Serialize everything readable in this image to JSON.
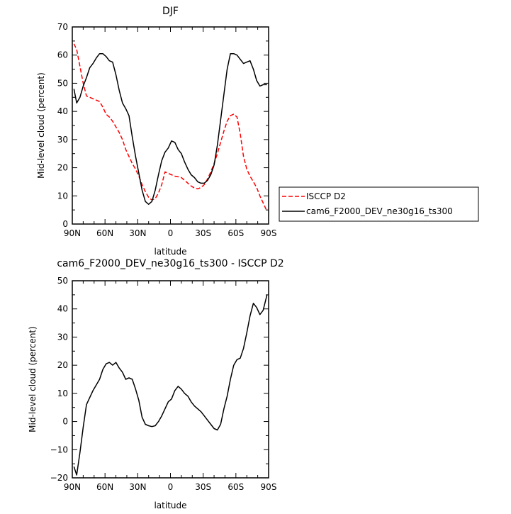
{
  "chart_data": [
    {
      "type": "line",
      "title": "DJF",
      "xlabel": "latitude",
      "ylabel": "Mid-level cloud (percent)",
      "xlim": [
        90,
        -90
      ],
      "ylim": [
        0,
        70
      ],
      "x_ticks": [
        90,
        60,
        30,
        0,
        -30,
        -60,
        -90
      ],
      "x_tick_labels": [
        "90N",
        "60N",
        "30N",
        "0",
        "30S",
        "60S",
        "90S"
      ],
      "y_ticks": [
        0,
        10,
        20,
        30,
        40,
        50,
        60,
        70
      ],
      "y_tick_labels": [
        "0",
        "10",
        "20",
        "30",
        "40",
        "50",
        "60",
        "70"
      ],
      "grid": false,
      "legend": "right",
      "series": [
        {
          "name": "ISCCP D2",
          "color": "#ff0000",
          "style": "dashed",
          "x": [
            88.5,
            86,
            83,
            80,
            77,
            74,
            71,
            68,
            65,
            62,
            59,
            56,
            53,
            50,
            47,
            44,
            41,
            38,
            35,
            32,
            29,
            26,
            23,
            20,
            17,
            14,
            11,
            8,
            5,
            2,
            -1,
            -4,
            -7,
            -10,
            -13,
            -16,
            -19,
            -22,
            -25,
            -28,
            -31,
            -34,
            -37,
            -40,
            -43,
            -46,
            -49,
            -52,
            -55,
            -58,
            -61,
            -64,
            -67,
            -70,
            -73,
            -76,
            -79,
            -82,
            -85,
            -88.5
          ],
          "y": [
            64,
            62,
            56,
            50,
            45.5,
            45,
            44.5,
            44,
            43.5,
            41.5,
            39,
            38,
            36.5,
            34.5,
            32.5,
            30,
            26.5,
            24,
            21.5,
            19.5,
            17,
            14,
            11.5,
            9.5,
            8.5,
            9,
            11,
            14,
            18.5,
            18,
            17.5,
            17,
            16.8,
            16.5,
            15.5,
            14.5,
            13.5,
            12.8,
            12.5,
            13,
            14,
            16,
            18.5,
            21.5,
            25,
            29,
            33,
            36.5,
            38.5,
            39,
            38,
            32,
            24,
            19.5,
            17,
            15,
            13,
            10,
            7.5,
            4.5
          ]
        },
        {
          "name": "cam6_F2000_DEV_ne30g16_ts300",
          "color": "#000000",
          "style": "solid",
          "x": [
            88.5,
            86,
            83,
            80,
            77,
            74,
            71,
            68,
            65,
            62,
            59,
            56,
            53,
            50,
            47,
            44,
            41,
            38,
            35,
            32,
            29,
            26,
            23,
            20,
            17,
            14,
            11,
            8,
            5,
            2,
            -1,
            -4,
            -7,
            -10,
            -13,
            -16,
            -19,
            -22,
            -25,
            -28,
            -31,
            -34,
            -37,
            -40,
            -43,
            -46,
            -49,
            -52,
            -55,
            -58,
            -61,
            -64,
            -67,
            -70,
            -73,
            -76,
            -79,
            -82,
            -85,
            -88.5
          ],
          "y": [
            48,
            43,
            45,
            49,
            52,
            55.5,
            57,
            59,
            60.5,
            60.5,
            59.5,
            58,
            57.5,
            53,
            47.5,
            43,
            41,
            38.5,
            31,
            24,
            18,
            12,
            8,
            7,
            8,
            12,
            17.5,
            22.5,
            25.5,
            27,
            29.5,
            29,
            26.5,
            25,
            22,
            19.5,
            17.5,
            16.5,
            15,
            14.5,
            14.5,
            15.5,
            17.5,
            21,
            28,
            37,
            46,
            55,
            60.5,
            60.5,
            60,
            58.5,
            57,
            57.5,
            58,
            55,
            51,
            49,
            49.5,
            49.5
          ]
        }
      ]
    },
    {
      "type": "line",
      "title": "cam6_F2000_DEV_ne30g16_ts300 - ISCCP D2",
      "xlabel": "latitude",
      "ylabel": "Mid-level cloud (percent)",
      "xlim": [
        90,
        -90
      ],
      "ylim": [
        -20,
        50
      ],
      "x_ticks": [
        90,
        60,
        30,
        0,
        -30,
        -60,
        -90
      ],
      "x_tick_labels": [
        "90N",
        "60N",
        "30N",
        "0",
        "30S",
        "60S",
        "90S"
      ],
      "y_ticks": [
        -20,
        -10,
        0,
        10,
        20,
        30,
        40,
        50
      ],
      "y_tick_labels": [
        "−20",
        "−10",
        "0",
        "10",
        "20",
        "30",
        "40",
        "50"
      ],
      "grid": false,
      "series": [
        {
          "color": "#000000",
          "style": "solid",
          "x": [
            88.5,
            86,
            83,
            80,
            77,
            74,
            71,
            68,
            65,
            62,
            59,
            56,
            53,
            50,
            47,
            44,
            41,
            38,
            35,
            32,
            29,
            26,
            23,
            20,
            17,
            14,
            11,
            8,
            5,
            2,
            -1,
            -4,
            -7,
            -10,
            -13,
            -16,
            -19,
            -22,
            -25,
            -28,
            -31,
            -34,
            -37,
            -40,
            -43,
            -46,
            -49,
            -52,
            -55,
            -58,
            -61,
            -64,
            -67,
            -70,
            -73,
            -76,
            -79,
            -82,
            -85,
            -88.5
          ],
          "y": [
            -16,
            -19,
            -11,
            -2,
            6,
            8.5,
            11,
            13,
            15,
            18.5,
            20.5,
            21,
            20,
            21,
            19,
            17.5,
            15,
            15.5,
            15,
            11.5,
            7.5,
            1.5,
            -1,
            -1.5,
            -1.8,
            -1.5,
            0,
            2,
            4.5,
            7,
            8,
            11,
            12.5,
            11.5,
            10,
            9,
            7,
            5.5,
            4.5,
            3.5,
            2,
            0.5,
            -1,
            -2.5,
            -3,
            -1,
            4.5,
            9,
            15,
            20,
            22,
            22.5,
            26,
            31.5,
            37.5,
            42,
            40.5,
            38,
            39.5,
            45
          ]
        }
      ]
    }
  ]
}
